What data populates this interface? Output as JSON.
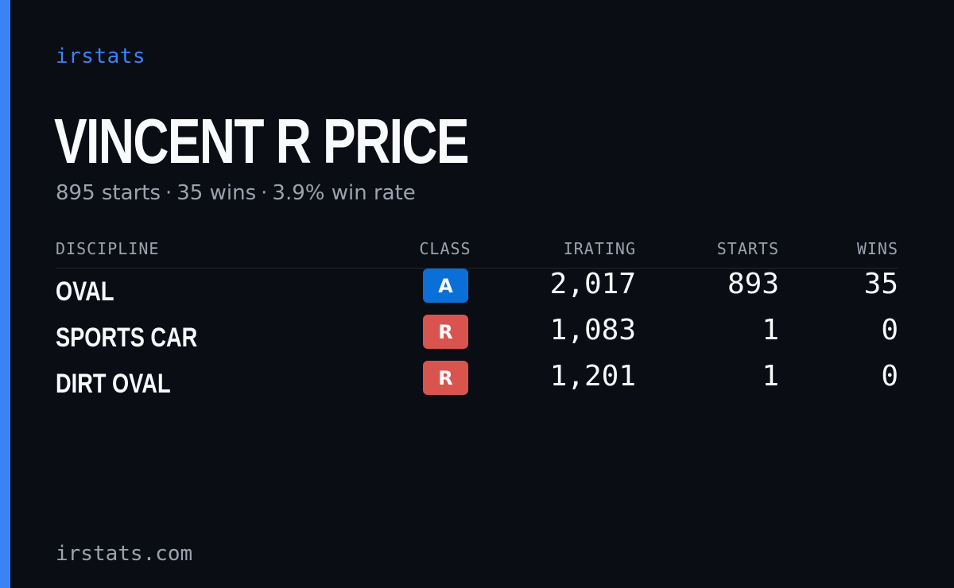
{
  "brand": "irstats",
  "driver": {
    "name": "VINCENT R PRICE",
    "summary": {
      "starts": "895 starts",
      "wins": "35 wins",
      "win_rate": "3.9% win rate",
      "separator": "·"
    }
  },
  "table": {
    "headers": {
      "discipline": "DISCIPLINE",
      "class": "CLASS",
      "irating": "IRATING",
      "starts": "STARTS",
      "wins": "WINS"
    },
    "rows": [
      {
        "discipline": "OVAL",
        "class": "A",
        "class_color": "#0b6fd8",
        "irating": "2,017",
        "starts": "893",
        "wins": "35"
      },
      {
        "discipline": "SPORTS CAR",
        "class": "R",
        "class_color": "#d9534f",
        "irating": "1,083",
        "starts": "1",
        "wins": "0"
      },
      {
        "discipline": "DIRT OVAL",
        "class": "R",
        "class_color": "#d9534f",
        "irating": "1,201",
        "starts": "1",
        "wins": "0"
      }
    ]
  },
  "footer": "irstats.com",
  "colors": {
    "accent": "#3b82f6",
    "background": "#0a0d14",
    "muted": "#9ca3af",
    "text": "#f8fafc"
  }
}
